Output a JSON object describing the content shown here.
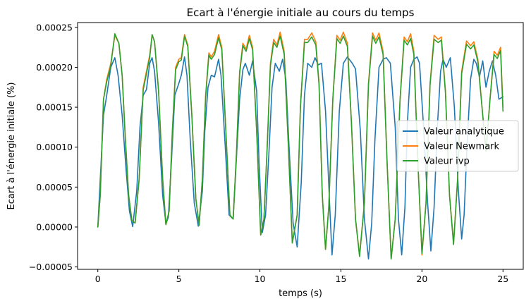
{
  "chart_data": {
    "type": "line",
    "title": "Ecart à l'énergie initiale au cours du temps",
    "xlabel": "temps (s)",
    "ylabel": "Ecart à l'énergie initiale (%)",
    "xlim": [
      -1.25,
      26.25
    ],
    "ylim": [
      -5.3e-05,
      0.000256
    ],
    "x_ticks": [
      0,
      5,
      10,
      15,
      20,
      25
    ],
    "x_tick_labels": [
      "0",
      "5",
      "10",
      "15",
      "20",
      "25"
    ],
    "y_ticks": [
      -5e-05,
      0,
      5e-05,
      0.0001,
      0.00015,
      0.0002,
      0.00025
    ],
    "y_tick_labels": [
      "−0.00005",
      "0.00000",
      "0.00005",
      "0.00010",
      "0.00015",
      "0.00020",
      "0.00025"
    ],
    "grid": false,
    "legend_position": "center-right",
    "series": [
      {
        "name": "Valeur analytique",
        "color": "#1f77b4",
        "x": [
          0,
          0.15,
          0.35,
          0.55,
          0.8,
          1.05,
          1.25,
          1.5,
          1.75,
          1.95,
          2.15,
          2.4,
          2.6,
          2.8,
          3.0,
          3.2,
          3.35,
          3.5,
          3.75,
          4.0,
          4.2,
          4.35,
          4.55,
          4.75,
          5.0,
          5.15,
          5.35,
          5.5,
          5.7,
          5.95,
          6.2,
          6.45,
          6.6,
          6.8,
          7.0,
          7.2,
          7.45,
          7.6,
          7.85,
          8.1,
          8.35,
          8.55,
          8.75,
          8.95,
          9.1,
          9.35,
          9.55,
          9.8,
          9.95,
          10.15,
          10.35,
          10.55,
          10.75,
          10.95,
          11.2,
          11.4,
          11.6,
          11.8,
          12.05,
          12.3,
          12.55,
          12.75,
          12.95,
          13.2,
          13.4,
          13.6,
          13.8,
          14.05,
          14.3,
          14.45,
          14.65,
          14.9,
          15.15,
          15.4,
          15.7,
          15.9,
          16.2,
          16.45,
          16.7,
          16.9,
          17.1,
          17.35,
          17.6,
          17.8,
          18.05,
          18.35,
          18.55,
          18.75,
          18.95,
          19.1,
          19.3,
          19.5,
          19.7,
          19.85,
          20.1,
          20.35,
          20.55,
          20.75,
          20.95,
          21.15,
          21.3,
          21.5,
          21.75,
          22.0,
          22.25,
          22.45,
          22.6,
          22.8,
          23.0,
          23.2,
          23.35,
          23.55,
          23.75,
          23.95,
          24.15,
          24.35,
          24.55,
          24.75,
          25.0
        ],
        "y": [
          0.0,
          6e-05,
          0.00014,
          0.000165,
          0.0002,
          0.000212,
          0.00019,
          0.00014,
          7e-05,
          2e-05,
          5e-07,
          4.5e-05,
          0.000125,
          0.000165,
          0.000172,
          0.000205,
          0.000212,
          0.000195,
          0.00013,
          4e-05,
          4e-06,
          1.2e-05,
          8.5e-05,
          0.000165,
          0.00018,
          0.00019,
          0.000213,
          0.00019,
          0.00011,
          3e-05,
          1e-06,
          4.5e-05,
          0.00012,
          0.000175,
          0.00019,
          0.000188,
          0.00021,
          0.00019,
          0.000105,
          1.5e-05,
          1e-05,
          8.5e-05,
          0.00016,
          0.000197,
          0.000205,
          0.00019,
          0.000208,
          0.00017,
          8e-05,
          -7e-06,
          1.5e-05,
          9e-05,
          0.000175,
          0.000205,
          0.000195,
          0.00021,
          0.000185,
          0.0001,
          5e-06,
          -2.5e-05,
          5.5e-05,
          0.000165,
          0.000205,
          0.0002,
          0.000212,
          0.000203,
          0.000205,
          0.000145,
          3e-05,
          -3.5e-05,
          1.5e-05,
          0.000145,
          0.000205,
          0.000213,
          0.000205,
          0.000198,
          0.00012,
          1e-05,
          -4e-05,
          5e-06,
          0.00011,
          0.0002,
          0.00021,
          0.000212,
          0.000205,
          0.000125,
          1e-05,
          -3.5e-05,
          2.5e-05,
          0.00013,
          0.0002,
          0.00021,
          0.000213,
          0.000205,
          0.000125,
          3e-05,
          -3e-05,
          2.5e-05,
          0.000125,
          0.000195,
          0.00021,
          0.0002,
          0.000212,
          0.00015,
          4.5e-05,
          -1.5e-05,
          1.5e-05,
          0.00011,
          0.000185,
          0.00021,
          0.000205,
          0.000188,
          0.000208,
          0.000175,
          0.000195,
          0.000208,
          0.00019,
          0.00016,
          0.000163
        ]
      },
      {
        "name": "Valeur Newmark",
        "color": "#ff7f0e",
        "x": [
          0,
          0.15,
          0.35,
          0.55,
          0.8,
          1.05,
          1.3,
          1.5,
          1.7,
          1.9,
          2.1,
          2.3,
          2.55,
          2.8,
          3.0,
          3.2,
          3.35,
          3.5,
          3.75,
          4.0,
          4.2,
          4.4,
          4.6,
          4.8,
          5.0,
          5.15,
          5.35,
          5.55,
          5.8,
          6.05,
          6.25,
          6.45,
          6.65,
          6.85,
          7.0,
          7.2,
          7.45,
          7.65,
          7.9,
          8.15,
          8.35,
          8.55,
          8.75,
          8.95,
          9.15,
          9.35,
          9.55,
          9.8,
          10.05,
          10.25,
          10.45,
          10.65,
          10.85,
          11.05,
          11.25,
          11.5,
          11.75,
          12.0,
          12.3,
          12.5,
          12.75,
          12.95,
          13.2,
          13.45,
          13.65,
          13.85,
          14.05,
          14.25,
          14.5,
          14.75,
          14.95,
          15.15,
          15.4,
          15.65,
          15.9,
          16.15,
          16.45,
          16.7,
          16.95,
          17.15,
          17.35,
          17.6,
          17.85,
          18.1,
          18.35,
          18.65,
          18.9,
          19.1,
          19.3,
          19.5,
          19.75,
          20.0,
          20.25,
          20.5,
          20.75,
          21.0,
          21.2,
          21.45,
          21.7,
          21.95,
          22.2,
          22.45,
          22.75,
          23.0,
          23.2,
          23.45,
          23.75,
          23.95,
          24.2,
          24.45,
          24.65,
          24.85,
          25.0
        ],
        "y": [
          0.0,
          4e-05,
          0.00016,
          0.000185,
          0.000205,
          0.00024,
          0.00023,
          0.00019,
          0.00011,
          4e-05,
          8e-06,
          5e-06,
          6e-05,
          0.000175,
          0.000195,
          0.000215,
          0.00024,
          0.000232,
          0.00017,
          6e-05,
          3e-06,
          2e-05,
          0.00012,
          0.0002,
          0.00021,
          0.000212,
          0.000241,
          0.000228,
          0.00014,
          3.5e-05,
          2e-06,
          6e-05,
          0.000165,
          0.000218,
          0.000213,
          0.00022,
          0.000241,
          0.000225,
          0.00012,
          1.5e-05,
          1e-05,
          9e-05,
          0.000195,
          0.00023,
          0.000223,
          0.00024,
          0.000225,
          0.00012,
          -1e-05,
          1e-05,
          0.0001,
          0.000205,
          0.000235,
          0.000228,
          0.000244,
          0.00022,
          0.000105,
          -2e-05,
          1.5e-05,
          0.00015,
          0.000235,
          0.000235,
          0.000243,
          0.000232,
          0.00018,
          4e-05,
          -2.8e-05,
          2.5e-05,
          0.00016,
          0.00024,
          0.000234,
          0.000244,
          0.00023,
          0.00013,
          1e-05,
          -3.5e-05,
          3e-05,
          0.00018,
          0.000243,
          0.000234,
          0.000243,
          0.00022,
          8e-05,
          -4e-05,
          1e-05,
          0.00016,
          0.000238,
          0.000232,
          0.000242,
          0.00022,
          8e-05,
          -3.5e-05,
          3e-05,
          0.00018,
          0.00024,
          0.000235,
          0.000238,
          0.00017,
          4e-05,
          -2e-05,
          6e-05,
          0.000195,
          0.000233,
          0.000227,
          0.000232,
          0.00021,
          0.00014,
          9.5e-05,
          0.00016,
          0.00022,
          0.000215,
          0.000225,
          0.00015
        ]
      },
      {
        "name": "Valeur ivp",
        "color": "#2ca02c",
        "x": [
          0,
          0.15,
          0.35,
          0.55,
          0.8,
          1.05,
          1.3,
          1.5,
          1.7,
          1.9,
          2.1,
          2.3,
          2.55,
          2.8,
          3.0,
          3.2,
          3.35,
          3.5,
          3.75,
          4.0,
          4.2,
          4.4,
          4.6,
          4.8,
          5.0,
          5.15,
          5.35,
          5.55,
          5.8,
          6.05,
          6.25,
          6.45,
          6.65,
          6.85,
          7.0,
          7.2,
          7.45,
          7.65,
          7.9,
          8.15,
          8.35,
          8.55,
          8.75,
          8.95,
          9.15,
          9.35,
          9.55,
          9.8,
          10.05,
          10.25,
          10.45,
          10.65,
          10.85,
          11.05,
          11.25,
          11.5,
          11.75,
          12.0,
          12.3,
          12.5,
          12.75,
          12.95,
          13.2,
          13.45,
          13.65,
          13.85,
          14.05,
          14.25,
          14.5,
          14.75,
          14.95,
          15.15,
          15.4,
          15.65,
          15.9,
          16.15,
          16.45,
          16.7,
          16.95,
          17.15,
          17.35,
          17.6,
          17.85,
          18.1,
          18.35,
          18.65,
          18.9,
          19.1,
          19.3,
          19.5,
          19.75,
          20.0,
          20.25,
          20.5,
          20.75,
          21.0,
          21.2,
          21.45,
          21.7,
          21.95,
          22.2,
          22.45,
          22.75,
          23.0,
          23.2,
          23.45,
          23.75,
          23.95,
          24.2,
          24.45,
          24.65,
          24.85,
          25.0
        ],
        "y": [
          0.0,
          4e-05,
          0.00016,
          0.000182,
          0.000202,
          0.000242,
          0.00023,
          0.00019,
          0.00011,
          4e-05,
          8e-06,
          5e-06,
          6e-05,
          0.000172,
          0.000192,
          0.000212,
          0.000241,
          0.000232,
          0.00017,
          6e-05,
          3e-06,
          2e-05,
          0.00012,
          0.000197,
          0.000207,
          0.000209,
          0.000239,
          0.000226,
          0.00014,
          3.5e-05,
          2e-06,
          6e-05,
          0.000162,
          0.000215,
          0.00021,
          0.000216,
          0.000237,
          0.000222,
          0.00012,
          1.5e-05,
          1e-05,
          9e-05,
          0.000192,
          0.000227,
          0.00022,
          0.000236,
          0.000222,
          0.00012,
          -1e-05,
          1e-05,
          0.0001,
          0.000202,
          0.000231,
          0.000225,
          0.000239,
          0.000216,
          0.000105,
          -2e-05,
          1.5e-05,
          0.00015,
          0.000231,
          0.000231,
          0.000238,
          0.000228,
          0.000178,
          4e-05,
          -2.8e-05,
          2.5e-05,
          0.00016,
          0.000236,
          0.00023,
          0.000239,
          0.000226,
          0.00013,
          1e-05,
          -3.7e-05,
          3e-05,
          0.000178,
          0.000239,
          0.00023,
          0.000238,
          0.000216,
          8e-05,
          -4e-05,
          1e-05,
          0.00016,
          0.000234,
          0.000228,
          0.000236,
          0.000216,
          8e-05,
          -3.3e-05,
          3e-05,
          0.000178,
          0.000235,
          0.000231,
          0.000234,
          0.000168,
          4e-05,
          -2.2e-05,
          6e-05,
          0.000192,
          0.000229,
          0.000223,
          0.000228,
          0.000207,
          0.00014,
          9.5e-05,
          0.00016,
          0.000216,
          0.000211,
          0.000221,
          0.000145
        ]
      }
    ]
  }
}
